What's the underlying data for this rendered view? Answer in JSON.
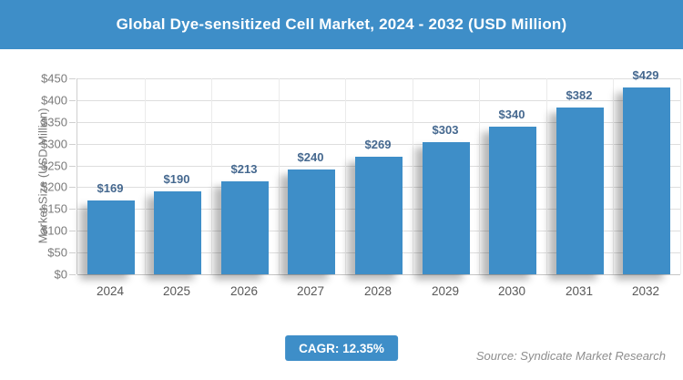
{
  "header": {
    "title": "Global Dye-sensitized Cell Market, 2024 - 2032 (USD Million)"
  },
  "chart_data": {
    "type": "bar",
    "title": "Global Dye-sensitized Cell Market, 2024 - 2032 (USD Million)",
    "categories": [
      "2024",
      "2025",
      "2026",
      "2027",
      "2028",
      "2029",
      "2030",
      "2031",
      "2032"
    ],
    "values": [
      169,
      190,
      213,
      240,
      269,
      303,
      340,
      382,
      429
    ],
    "data_labels": [
      "$169",
      "$190",
      "$213",
      "$240",
      "$269",
      "$303",
      "$340",
      "$382",
      "$429"
    ],
    "value_prefix": "$",
    "xlabel": "",
    "ylabel": "Market Size (USD Million)",
    "ylim": [
      0,
      450
    ],
    "ytick_step": 50,
    "ytick_labels": [
      "$0",
      "$50",
      "$100",
      "$150",
      "$200",
      "$250",
      "$300",
      "$350",
      "$400",
      "$450"
    ],
    "grid": true,
    "legend_position": "none",
    "bar_color": "#3E8EC8",
    "data_label_color": "#45688F"
  },
  "footer": {
    "cagr_label": "CAGR: 12.35%",
    "source": "Source: Syndicate Market Research"
  },
  "colors": {
    "accent_blue": "#3E8EC8",
    "data_label_blue": "#45688F",
    "axis_text_gray": "#7A7A7A",
    "year_text_gray": "#585858",
    "grid_gray": "#DEDEDE"
  }
}
